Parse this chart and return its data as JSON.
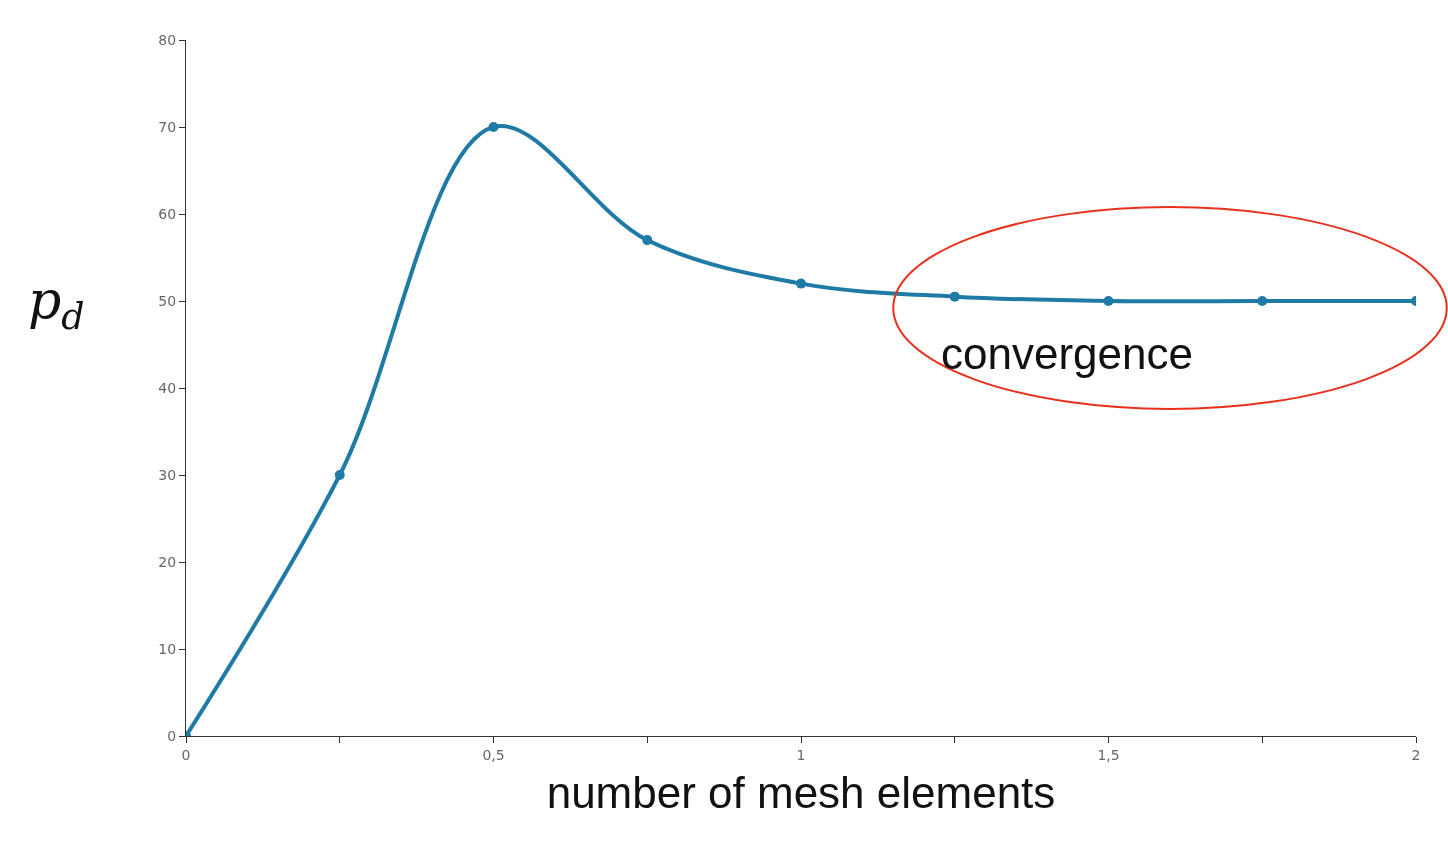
{
  "chart_data": {
    "type": "line",
    "xlabel": "number of mesh elements",
    "ylabel": "p$_{d}$",
    "x": [
      0,
      0.25,
      0.5,
      0.75,
      1,
      1.25,
      1.5,
      1.75,
      2
    ],
    "series": [
      {
        "color": "#1f7ba6",
        "values": [
          0,
          30,
          70,
          57,
          52,
          50.5,
          50,
          50,
          50
        ]
      }
    ],
    "xlim": [
      0,
      2
    ],
    "xticks": [
      0,
      {
        "value": 0.25,
        "label": null
      },
      {
        "value": 0.5,
        "label": "0,5"
      },
      {
        "value": 0.75,
        "label": null
      },
      1,
      {
        "value": 1.25,
        "label": null
      },
      {
        "value": 1.5,
        "label": "1,5"
      },
      {
        "value": 1.75,
        "label": null
      },
      2
    ],
    "ylim": [
      0,
      80
    ],
    "yticks": [
      0,
      10,
      20,
      30,
      40,
      50,
      60,
      70,
      80
    ],
    "annotations": [
      "convergence"
    ],
    "marker": "circle",
    "line_style": "solid"
  }
}
